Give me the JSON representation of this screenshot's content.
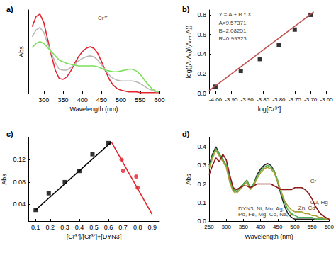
{
  "chart_data": [
    {
      "type": "line",
      "title": "a)",
      "x_label": "Wavelength (nm)",
      "y_label": "Abs",
      "x": [
        270,
        280,
        290,
        300,
        310,
        320,
        330,
        340,
        350,
        360,
        370,
        380,
        390,
        400,
        410,
        420,
        430,
        440,
        450,
        460,
        470,
        480,
        490,
        500,
        510,
        520,
        530,
        540,
        550,
        560,
        570,
        580,
        590,
        600
      ],
      "xlim": [
        260,
        600
      ],
      "xticks": [
        300,
        350,
        400,
        450,
        500,
        550,
        600
      ],
      "ylim": [
        0,
        1
      ],
      "tick_labels": "x",
      "grid": false,
      "series": [
        {
          "color": "#e3232c",
          "values": [
            0.8,
            0.92,
            0.95,
            0.85,
            0.65,
            0.45,
            0.28,
            0.18,
            0.17,
            0.2,
            0.27,
            0.36,
            0.44,
            0.5,
            0.54,
            0.56,
            0.54,
            0.48,
            0.38,
            0.27,
            0.17,
            0.1,
            0.06,
            0.04,
            0.03,
            0.02,
            0.02,
            0.02,
            0.01,
            0.01,
            0.01,
            0.01,
            0.01,
            0.01
          ]
        },
        {
          "color": "#b8b8b8",
          "values": [
            0.68,
            0.76,
            0.79,
            0.73,
            0.6,
            0.48,
            0.37,
            0.29,
            0.28,
            0.28,
            0.31,
            0.35,
            0.39,
            0.42,
            0.44,
            0.45,
            0.44,
            0.4,
            0.34,
            0.28,
            0.22,
            0.18,
            0.16,
            0.15,
            0.15,
            0.15,
            0.15,
            0.14,
            0.12,
            0.09,
            0.06,
            0.04,
            0.02,
            0.02
          ]
        },
        {
          "color": "#7ee05a",
          "values": [
            0.55,
            0.6,
            0.62,
            0.6,
            0.55,
            0.5,
            0.45,
            0.4,
            0.38,
            0.36,
            0.35,
            0.34,
            0.33,
            0.33,
            0.33,
            0.33,
            0.33,
            0.32,
            0.3,
            0.28,
            0.27,
            0.26,
            0.26,
            0.27,
            0.28,
            0.29,
            0.29,
            0.27,
            0.23,
            0.17,
            0.11,
            0.06,
            0.03,
            0.02
          ]
        }
      ],
      "annotations": [
        {
          "text": "Cr³⁺",
          "x": 440,
          "y": 0.9
        }
      ]
    },
    {
      "type": "scatter",
      "title": "b)",
      "x_label": "log[Cr³⁺]",
      "y_label": "log((A-A₀)/(Aₗᵢₘ-A))",
      "xlim": [
        -4.02,
        -3.64
      ],
      "xticks": [
        {
          "value": -4.0,
          "label": "-4.00"
        },
        {
          "value": -3.95,
          "label": "-3.95"
        },
        {
          "value": -3.9,
          "label": "-3.90"
        },
        {
          "value": -3.85,
          "label": "-3.85"
        },
        {
          "value": -3.8,
          "label": "-3.80"
        },
        {
          "value": -3.75,
          "label": "-3.75"
        },
        {
          "value": -3.7,
          "label": "-3.70"
        },
        {
          "value": -3.65,
          "label": "-3.65"
        }
      ],
      "ylim": [
        0,
        0.85
      ],
      "yticks": [
        {
          "value": 0,
          "label": "0.0"
        },
        {
          "value": 0.2,
          "label": "0.2"
        },
        {
          "value": 0.4,
          "label": "0.4"
        },
        {
          "value": 0.6,
          "label": "0.6"
        },
        {
          "value": 0.8,
          "label": "0.8"
        }
      ],
      "grid": false,
      "series": [
        {
          "type": "scatter",
          "marker": "rect",
          "color": "#000000",
          "x": [
            -4.0,
            -3.92,
            -3.86,
            -3.8,
            -3.75,
            -3.7
          ],
          "values": [
            0.07,
            0.23,
            0.35,
            0.49,
            0.65,
            0.8
          ]
        },
        {
          "type": "line",
          "color": "#c0504d",
          "x": [
            -4.02,
            -3.69
          ],
          "values": [
            0.03,
            0.83
          ]
        }
      ],
      "annotations": [
        {
          "text": "Y = A + B * X",
          "x": -3.99,
          "y": 0.8
        },
        {
          "text": "A=9.57371",
          "x": -3.99,
          "y": 0.72
        },
        {
          "text": "B=2.08251",
          "x": -3.99,
          "y": 0.64
        },
        {
          "text": "R=0.99323",
          "x": -3.99,
          "y": 0.56
        }
      ]
    },
    {
      "type": "scatter",
      "title": "c)",
      "x_label": "[Cr³⁺]/[Cr³⁺]+[DYN3]",
      "y_label": "Abs",
      "xlim": [
        0.05,
        0.95
      ],
      "xticks": [
        0.1,
        0.2,
        0.3,
        0.4,
        0.5,
        0.6,
        0.7,
        0.8,
        0.9
      ],
      "ylim": [
        0.01,
        0.16
      ],
      "yticks": [
        0.04,
        0.08,
        0.12
      ],
      "grid": false,
      "series": [
        {
          "type": "scatter",
          "marker": "rect",
          "color": "#000000",
          "x": [
            0.1,
            0.19,
            0.3,
            0.4,
            0.49,
            0.6
          ],
          "values": [
            0.03,
            0.06,
            0.08,
            0.1,
            0.13,
            0.15
          ]
        },
        {
          "type": "scatter",
          "marker": "circle",
          "color": "#e3232c",
          "x": [
            0.69,
            0.7,
            0.79,
            0.8
          ],
          "values": [
            0.12,
            0.1,
            0.09,
            0.07
          ]
        },
        {
          "type": "line",
          "color": "#000000",
          "x": [
            0.1,
            0.62
          ],
          "values": [
            0.03,
            0.152
          ]
        },
        {
          "type": "line",
          "color": "#e3232c",
          "x": [
            0.62,
            0.9
          ],
          "values": [
            0.152,
            0.022
          ]
        }
      ],
      "annotations": []
    },
    {
      "type": "line",
      "title": "d)",
      "x_label": "Wavelength (nm)",
      "y_label": "Abs",
      "x": [
        250,
        260,
        270,
        280,
        290,
        300,
        310,
        320,
        330,
        340,
        350,
        360,
        370,
        380,
        390,
        400,
        410,
        420,
        430,
        440,
        450,
        460,
        470,
        480,
        490,
        500,
        510,
        520,
        530,
        540,
        550,
        560,
        570,
        580,
        590,
        600
      ],
      "xlim": [
        250,
        600
      ],
      "xticks": [
        250,
        300,
        350,
        400,
        450,
        500,
        550,
        600
      ],
      "ylim": [
        0,
        0.45
      ],
      "yticks": [
        {
          "value": 0,
          "label": "0.0"
        },
        {
          "value": 0.1,
          "label": "0.1"
        },
        {
          "value": 0.2,
          "label": "0.2"
        },
        {
          "value": 0.3,
          "label": "0.3"
        },
        {
          "value": 0.4,
          "label": "0.4"
        }
      ],
      "grid": false,
      "series": [
        {
          "color": "#222222",
          "values": [
            0.3,
            0.36,
            0.4,
            0.36,
            0.33,
            0.3,
            0.22,
            0.17,
            0.16,
            0.18,
            0.2,
            0.22,
            0.18,
            0.2,
            0.25,
            0.28,
            0.3,
            0.31,
            0.3,
            0.27,
            0.21,
            0.14,
            0.08,
            0.04,
            0.02,
            0.01,
            0.01,
            0.01,
            0.01,
            0.01,
            0.01,
            0.01,
            0.01,
            0.01,
            0.01,
            0.01
          ]
        },
        {
          "color": "#4caf50",
          "values": [
            0.29,
            0.35,
            0.39,
            0.36,
            0.33,
            0.3,
            0.22,
            0.17,
            0.16,
            0.18,
            0.2,
            0.22,
            0.18,
            0.2,
            0.24,
            0.27,
            0.29,
            0.3,
            0.29,
            0.27,
            0.22,
            0.15,
            0.1,
            0.06,
            0.04,
            0.03,
            0.02,
            0.02,
            0.02,
            0.02,
            0.02,
            0.01,
            0.01,
            0.01,
            0.01,
            0.01
          ]
        },
        {
          "color": "#a8a032",
          "values": [
            0.28,
            0.34,
            0.38,
            0.35,
            0.32,
            0.29,
            0.21,
            0.16,
            0.15,
            0.17,
            0.19,
            0.21,
            0.17,
            0.19,
            0.23,
            0.26,
            0.28,
            0.29,
            0.28,
            0.26,
            0.21,
            0.16,
            0.11,
            0.08,
            0.06,
            0.05,
            0.05,
            0.05,
            0.04,
            0.04,
            0.03,
            0.03,
            0.02,
            0.02,
            0.01,
            0.01
          ]
        },
        {
          "color": "#8b1a1a",
          "values": [
            0.25,
            0.3,
            0.34,
            0.32,
            0.36,
            0.33,
            0.25,
            0.18,
            0.17,
            0.18,
            0.19,
            0.19,
            0.18,
            0.19,
            0.2,
            0.2,
            0.2,
            0.2,
            0.2,
            0.19,
            0.18,
            0.17,
            0.17,
            0.17,
            0.17,
            0.18,
            0.18,
            0.18,
            0.17,
            0.15,
            0.12,
            0.08,
            0.05,
            0.03,
            0.02,
            0.01
          ]
        }
      ],
      "annotations": [
        {
          "text": "Cr",
          "x": 545,
          "y": 0.215
        },
        {
          "text": "Cu, Hg",
          "x": 545,
          "y": 0.1
        },
        {
          "text": "Zn, Cd",
          "x": 510,
          "y": 0.07
        },
        {
          "text": "DYN3, Ni, Mn, Ag,",
          "x": 335,
          "y": 0.065
        },
        {
          "text": "Pd, Fe, Mg, Co, Na, K",
          "x": 335,
          "y": 0.035
        }
      ]
    }
  ]
}
